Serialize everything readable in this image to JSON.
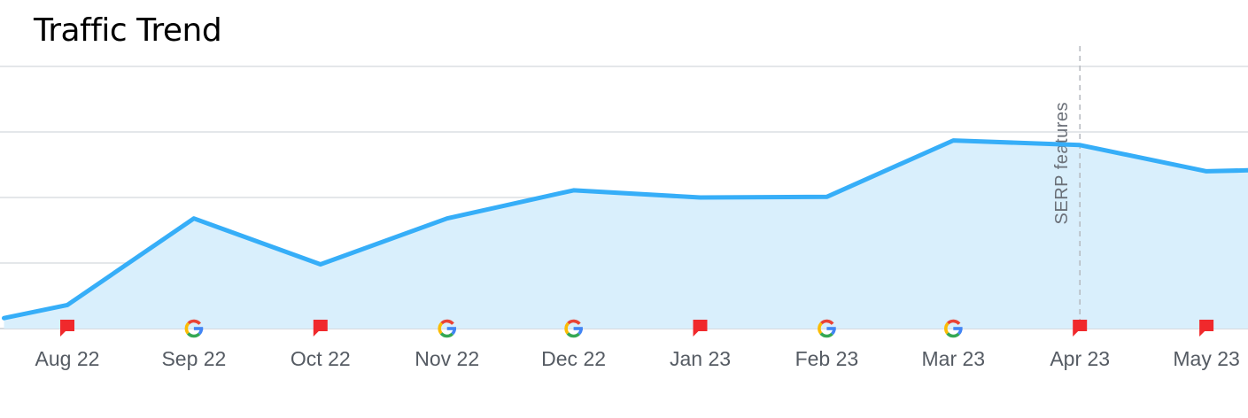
{
  "title": "Traffic Trend",
  "chart_data": {
    "type": "area",
    "title": "Traffic Trend",
    "xlabel": "",
    "ylabel": "",
    "ylim": [
      0,
      4
    ],
    "grid": true,
    "x_labels": [
      "Aug 22",
      "Sep 22",
      "Oct 22",
      "Nov 22",
      "Dec 22",
      "Jan 23",
      "Feb 23",
      "Mar 23",
      "Apr 23",
      "May 23"
    ],
    "x": [
      -0.5,
      0,
      1,
      2,
      3,
      4,
      5,
      6,
      7,
      8,
      9,
      9.45
    ],
    "values": [
      0.16,
      0.36,
      1.68,
      0.98,
      1.68,
      2.11,
      2.0,
      2.01,
      2.87,
      2.8,
      2.4,
      2.42
    ],
    "line_color": "#36aef8",
    "fill_color": "#d9effc",
    "markers": [
      {
        "x": 0,
        "type": "flag"
      },
      {
        "x": 1,
        "type": "google"
      },
      {
        "x": 2,
        "type": "flag"
      },
      {
        "x": 3,
        "type": "google"
      },
      {
        "x": 4,
        "type": "google"
      },
      {
        "x": 5,
        "type": "flag"
      },
      {
        "x": 6,
        "type": "google"
      },
      {
        "x": 7,
        "type": "google"
      },
      {
        "x": 8,
        "type": "flag"
      },
      {
        "x": 9,
        "type": "flag"
      }
    ],
    "annotation": {
      "x": 8,
      "label": "SERP features"
    }
  }
}
